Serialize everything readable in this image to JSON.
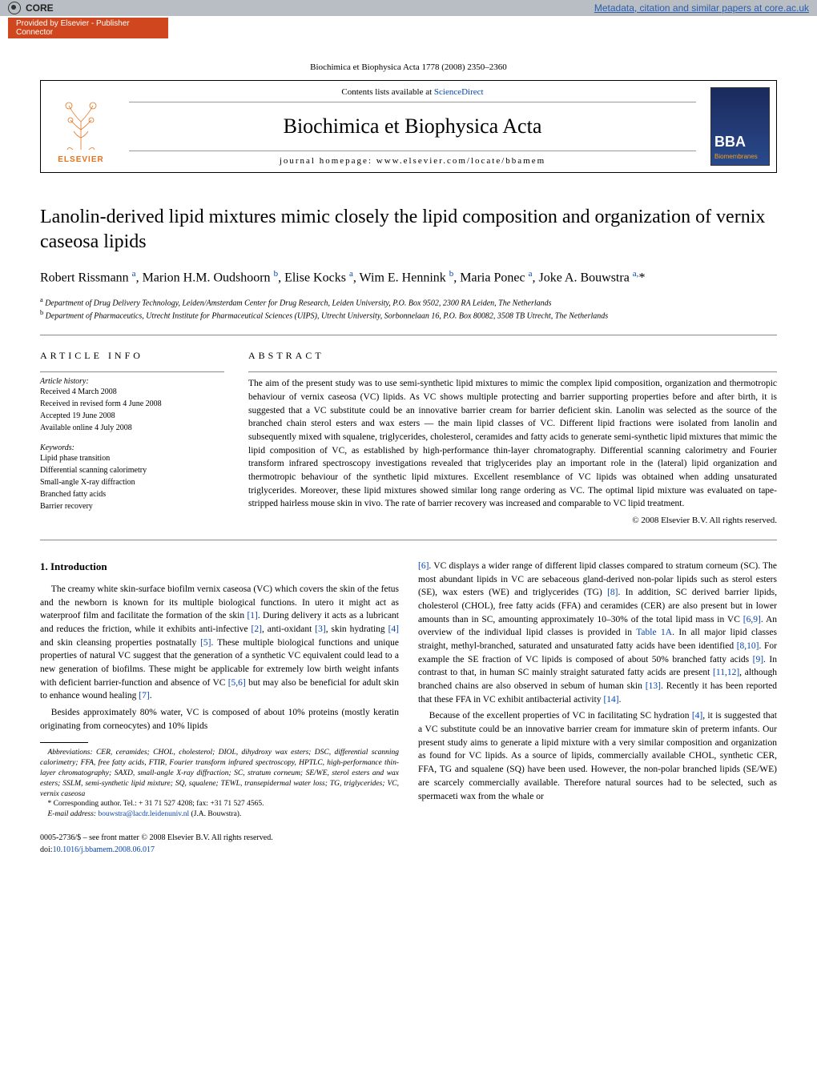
{
  "core": {
    "brand": "CORE",
    "link_text": "Metadata, citation and similar papers at core.ac.uk",
    "provided": "Provided by Elsevier - Publisher Connector"
  },
  "header": {
    "citation": "Biochimica et Biophysica Acta 1778 (2008) 2350–2360",
    "contents": "Contents lists available at ",
    "contents_link": "ScienceDirect",
    "journal": "Biochimica et Biophysica Acta",
    "homepage_label": "journal homepage: ",
    "homepage_url": "www.elsevier.com/locate/bbamem",
    "publisher": "ELSEVIER"
  },
  "title": "Lanolin-derived lipid mixtures mimic closely the lipid composition and organization of vernix caseosa lipids",
  "authors_html": "Robert Rissmann <sup>a</sup>, Marion H.M. Oudshoorn <sup>b</sup>, Elise Kocks <sup>a</sup>, Wim E. Hennink <sup>b</sup>, Maria Ponec <sup>a</sup>, Joke A. Bouwstra <sup>a,</sup>*",
  "affiliations": {
    "a": "Department of Drug Delivery Technology, Leiden/Amsterdam Center for Drug Research, Leiden University, P.O. Box 9502, 2300 RA Leiden, The Netherlands",
    "b": "Department of Pharmaceutics, Utrecht Institute for Pharmaceutical Sciences (UIPS), Utrecht University, Sorbonnelaan 16, P.O. Box 80082, 3508 TB Utrecht, The Netherlands"
  },
  "article_info": {
    "heading": "ARTICLE INFO",
    "history_label": "Article history:",
    "history": [
      "Received 4 March 2008",
      "Received in revised form 4 June 2008",
      "Accepted 19 June 2008",
      "Available online 4 July 2008"
    ],
    "keywords_label": "Keywords:",
    "keywords": [
      "Lipid phase transition",
      "Differential scanning calorimetry",
      "Small-angle X-ray diffraction",
      "Branched fatty acids",
      "Barrier recovery"
    ]
  },
  "abstract": {
    "heading": "ABSTRACT",
    "text": "The aim of the present study was to use semi-synthetic lipid mixtures to mimic the complex lipid composition, organization and thermotropic behaviour of vernix caseosa (VC) lipids. As VC shows multiple protecting and barrier supporting properties before and after birth, it is suggested that a VC substitute could be an innovative barrier cream for barrier deficient skin. Lanolin was selected as the source of the branched chain sterol esters and wax esters — the main lipid classes of VC. Different lipid fractions were isolated from lanolin and subsequently mixed with squalene, triglycerides, cholesterol, ceramides and fatty acids to generate semi-synthetic lipid mixtures that mimic the lipid composition of VC, as established by high-performance thin-layer chromatography. Differential scanning calorimetry and Fourier transform infrared spectroscopy investigations revealed that triglycerides play an important role in the (lateral) lipid organization and thermotropic behaviour of the synthetic lipid mixtures. Excellent resemblance of VC lipids was obtained when adding unsaturated triglycerides. Moreover, these lipid mixtures showed similar long range ordering as VC. The optimal lipid mixture was evaluated on tape-stripped hairless mouse skin in vivo. The rate of barrier recovery was increased and comparable to VC lipid treatment.",
    "copyright": "© 2008 Elsevier B.V. All rights reserved."
  },
  "body": {
    "intro_heading": "1. Introduction",
    "left_p1": "The creamy white skin-surface biofilm vernix caseosa (VC) which covers the skin of the fetus and the newborn is known for its multiple biological functions. In utero it might act as waterproof film and facilitate the formation of the skin [1]. During delivery it acts as a lubricant and reduces the friction, while it exhibits anti-infective [2], anti-oxidant [3], skin hydrating [4] and skin cleansing properties postnatally [5]. These multiple biological functions and unique properties of natural VC suggest that the generation of a synthetic VC equivalent could lead to a new generation of biofilms. These might be applicable for extremely low birth weight infants with deficient barrier-function and absence of VC [5,6] but may also be beneficial for adult skin to enhance wound healing [7].",
    "left_p2": "Besides approximately 80% water, VC is composed of about 10% proteins (mostly keratin originating from corneocytes) and 10% lipids",
    "right_p1": "[6]. VC displays a wider range of different lipid classes compared to stratum corneum (SC). The most abundant lipids in VC are sebaceous gland-derived non-polar lipids such as sterol esters (SE), wax esters (WE) and triglycerides (TG) [8]. In addition, SC derived barrier lipids, cholesterol (CHOL), free fatty acids (FFA) and ceramides (CER) are also present but in lower amounts than in SC, amounting approximately 10–30% of the total lipid mass in VC [6,9]. An overview of the individual lipid classes is provided in Table 1A. In all major lipid classes straight, methyl-branched, saturated and unsaturated fatty acids have been identified [8,10]. For example the SE fraction of VC lipids is composed of about 50% branched fatty acids [9]. In contrast to that, in human SC mainly straight saturated fatty acids are present [11,12], although branched chains are also observed in sebum of human skin [13]. Recently it has been reported that these FFA in VC exhibit antibacterial activity [14].",
    "right_p2": "Because of the excellent properties of VC in facilitating SC hydration [4], it is suggested that a VC substitute could be an innovative barrier cream for immature skin of preterm infants. Our present study aims to generate a lipid mixture with a very similar composition and organization as found for VC lipids. As a source of lipids, commercially available CHOL, synthetic CER, FFA, TG and squalene (SQ) have been used. However, the non-polar branched lipids (SE/WE) are scarcely commercially available. Therefore natural sources had to be selected, such as spermaceti wax from the whale or"
  },
  "footnotes": {
    "abbrev": "Abbreviations: CER, ceramides; CHOL, cholesterol; DIOL, dihydroxy wax esters; DSC, differential scanning calorimetry; FFA, free fatty acids, FTIR, Fourier transform infrared spectroscopy, HPTLC, high-performance thin-layer chromatography; SAXD, small-angle X-ray diffraction; SC, stratum corneum; SE/WE, sterol esters and wax esters; SSLM, semi-synthetic lipid mixture; SQ, squalene; TEWL, transepidermal water loss; TG, triglycerides; VC, vernix caseosa",
    "corresp": "* Corresponding author. Tel.: + 31 71 527 4208; fax: +31 71 527 4565.",
    "email_label": "E-mail address: ",
    "email": "bouwstra@lacdr.leidenuniv.nl",
    "email_suffix": " (J.A. Bouwstra)."
  },
  "doi": {
    "line1": "0005-2736/$ – see front matter © 2008 Elsevier B.V. All rights reserved.",
    "line2_prefix": "doi:",
    "line2_link": "10.1016/j.bbamem.2008.06.017"
  },
  "colors": {
    "link": "#0645ad",
    "elsevier_orange": "#e5711b",
    "core_bg": "#b8bec3",
    "provided_bg": "#d0471f"
  }
}
